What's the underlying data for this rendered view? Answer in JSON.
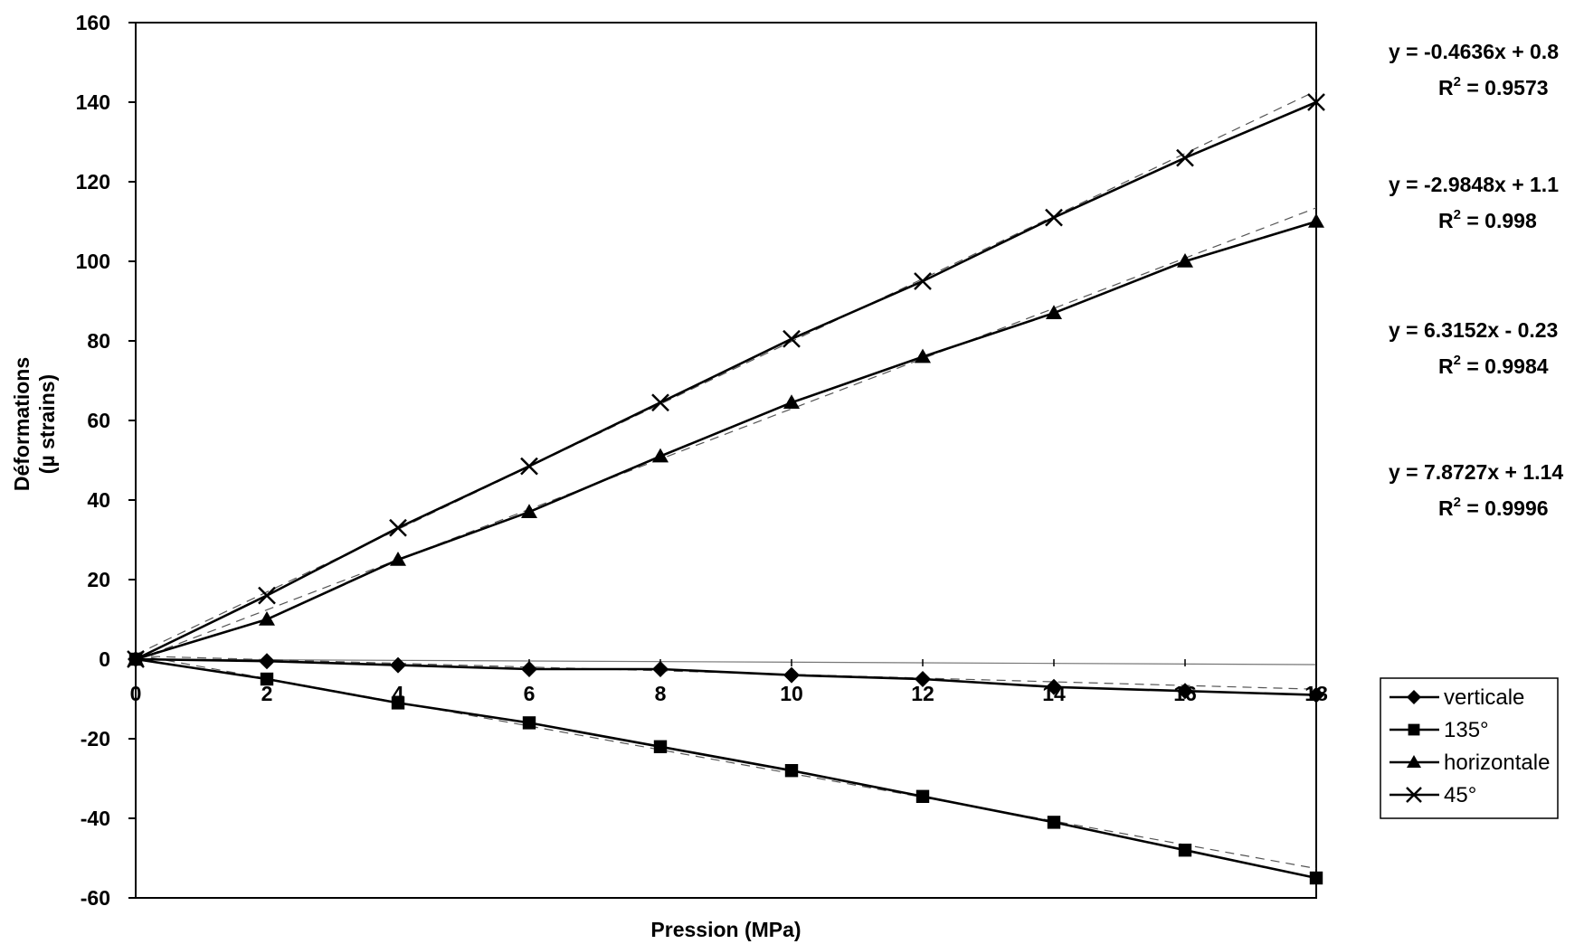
{
  "chart_data": {
    "type": "line",
    "xlabel": "Pression (MPa)",
    "ylabel_lines": [
      "Déformations",
      "(µ strains)"
    ],
    "xlim": [
      0,
      18
    ],
    "ylim": [
      -60,
      160
    ],
    "x_ticks": [
      "0",
      "2",
      "4",
      "6",
      "8",
      "10",
      "12",
      "14",
      "16",
      "18"
    ],
    "y_ticks": [
      "160",
      "140",
      "120",
      "100",
      "80",
      "60",
      "40",
      "20",
      "0",
      "-20",
      "-40",
      "-60"
    ],
    "x": [
      0,
      2,
      4,
      6,
      8,
      10,
      12,
      14,
      16,
      18
    ],
    "series": [
      {
        "name": "verticale",
        "marker": "diamond",
        "values": [
          0,
          -0.5,
          -1.5,
          -2.5,
          -2.5,
          -4,
          -5,
          -7,
          -8,
          -9
        ]
      },
      {
        "name": "135°",
        "marker": "square",
        "values": [
          0,
          -5,
          -11,
          -16,
          -22,
          -28,
          -34.5,
          -41,
          -48,
          -55
        ]
      },
      {
        "name": "horizontale",
        "marker": "triangle",
        "values": [
          0,
          10,
          25,
          37,
          51,
          64.5,
          76,
          87,
          100,
          110
        ]
      },
      {
        "name": "45°",
        "marker": "x",
        "values": [
          0,
          16,
          33,
          48.5,
          64.5,
          80.5,
          95,
          111,
          126,
          140
        ]
      }
    ],
    "trendlines": [
      {
        "series": "verticale",
        "equation": "y = -0.4636x + 0.8",
        "r2": "0.9573",
        "slope": -0.4636,
        "intercept": 0.8
      },
      {
        "series": "135°",
        "equation": "y = -2.9848x + 1.1",
        "r2": "0.998",
        "slope": -2.9848,
        "intercept": 1.1
      },
      {
        "series": "horizontale",
        "equation": "y = 6.3152x - 0.23",
        "r2": "0.9984",
        "slope": 6.3152,
        "intercept": -0.23
      },
      {
        "series": "45°",
        "equation": "y = 7.8727x + 1.14",
        "r2": "0.9996",
        "slope": 7.8727,
        "intercept": 1.14
      }
    ],
    "r2_label": "R",
    "r2_exponent": "2",
    "grid": false,
    "legend_position": "bottom-right"
  }
}
